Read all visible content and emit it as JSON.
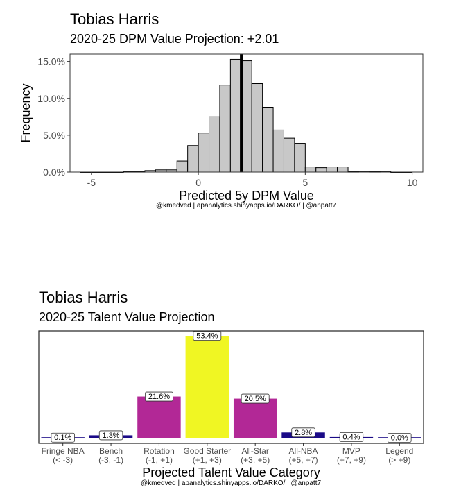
{
  "charts": [
    {
      "type": "histogram",
      "title": "Tobias Harris",
      "subtitle": "2020-25 DPM Value Projection: +2.01",
      "xlabel": "Predicted 5y DPM Value",
      "ylabel": "Frequency",
      "caption": "@kmedved | apanalytics.shinyapps.io/DARKO/ | @anpatt7",
      "xlim": [
        -6,
        10.5
      ],
      "ylim": [
        0,
        16
      ],
      "x_ticks": [
        -5,
        0,
        5,
        10
      ],
      "y_ticks": [
        0,
        5,
        10,
        15
      ],
      "y_tick_labels": [
        "0.0%",
        "5.0%",
        "10.0%",
        "15.0%"
      ],
      "bin_width": 0.5,
      "bins": [
        {
          "x0": -5.5,
          "x1": -5.0,
          "value": 0.0
        },
        {
          "x0": -5.0,
          "x1": -4.5,
          "value": 0.0
        },
        {
          "x0": -4.5,
          "x1": -4.0,
          "value": 0.0
        },
        {
          "x0": -4.0,
          "x1": -3.5,
          "value": 0.0
        },
        {
          "x0": -3.5,
          "x1": -3.0,
          "value": 0.05
        },
        {
          "x0": -3.0,
          "x1": -2.5,
          "value": 0.05
        },
        {
          "x0": -2.5,
          "x1": -2.0,
          "value": 0.2
        },
        {
          "x0": -2.0,
          "x1": -1.5,
          "value": 0.3
        },
        {
          "x0": -1.5,
          "x1": -1.0,
          "value": 0.3
        },
        {
          "x0": -1.0,
          "x1": -0.5,
          "value": 1.5
        },
        {
          "x0": -0.5,
          "x1": 0.0,
          "value": 3.6
        },
        {
          "x0": 0.0,
          "x1": 0.5,
          "value": 5.3
        },
        {
          "x0": 0.5,
          "x1": 1.0,
          "value": 7.5
        },
        {
          "x0": 1.0,
          "x1": 1.5,
          "value": 11.8
        },
        {
          "x0": 1.5,
          "x1": 2.0,
          "value": 15.3
        },
        {
          "x0": 2.0,
          "x1": 2.5,
          "value": 15.1
        },
        {
          "x0": 2.5,
          "x1": 3.0,
          "value": 12.0
        },
        {
          "x0": 3.0,
          "x1": 3.5,
          "value": 8.8
        },
        {
          "x0": 3.5,
          "x1": 4.0,
          "value": 5.7
        },
        {
          "x0": 4.0,
          "x1": 4.5,
          "value": 4.6
        },
        {
          "x0": 4.5,
          "x1": 5.0,
          "value": 3.9
        },
        {
          "x0": 5.0,
          "x1": 5.5,
          "value": 0.7
        },
        {
          "x0": 5.5,
          "x1": 6.0,
          "value": 0.6
        },
        {
          "x0": 6.0,
          "x1": 6.5,
          "value": 0.7
        },
        {
          "x0": 6.5,
          "x1": 7.0,
          "value": 0.7
        },
        {
          "x0": 7.0,
          "x1": 7.5,
          "value": 0.05
        },
        {
          "x0": 7.5,
          "x1": 8.0,
          "value": 0.1
        },
        {
          "x0": 8.0,
          "x1": 8.5,
          "value": 0.05
        },
        {
          "x0": 8.5,
          "x1": 9.0,
          "value": 0.1
        },
        {
          "x0": 9.0,
          "x1": 9.5,
          "value": 0.0
        },
        {
          "x0": 9.5,
          "x1": 10.0,
          "value": 0.0
        }
      ],
      "vline": 2.01,
      "colors": {
        "fill": "#c8c8c8",
        "stroke": "#000000"
      },
      "grid": false
    },
    {
      "type": "bar",
      "title": "Tobias Harris",
      "subtitle": "2020-25 Talent Value Projection",
      "xlabel": "Projected Talent Value Category",
      "caption": "@kmedved | apanalytics.shinyapps.io/DARKO/ | @anpatt7",
      "ylim": [
        0,
        53.4
      ],
      "categories": [
        {
          "name": "Fringe NBA",
          "range": "(< -3)",
          "value": 0.1,
          "label": "0.1%",
          "color": "#1a0a87"
        },
        {
          "name": "Bench",
          "range": "(-3, -1)",
          "value": 1.3,
          "label": "1.3%",
          "color": "#1a0a87"
        },
        {
          "name": "Rotation",
          "range": "(-1, +1)",
          "value": 21.6,
          "label": "21.6%",
          "color": "#b22896"
        },
        {
          "name": "Good Starter",
          "range": "(+1, +3)",
          "value": 53.4,
          "label": "53.4%",
          "color": "#f0f623"
        },
        {
          "name": "All-Star",
          "range": "(+3, +5)",
          "value": 20.5,
          "label": "20.5%",
          "color": "#b22896"
        },
        {
          "name": "All-NBA",
          "range": "(+5, +7)",
          "value": 2.8,
          "label": "2.8%",
          "color": "#1a0a87"
        },
        {
          "name": "MVP",
          "range": "(+7, +9)",
          "value": 0.4,
          "label": "0.4%",
          "color": "#1a0a87"
        },
        {
          "name": "Legend",
          "range": "(> +9)",
          "value": 0.0,
          "label": "0.0%",
          "color": "#1a0a87"
        }
      ],
      "grid": false
    }
  ]
}
